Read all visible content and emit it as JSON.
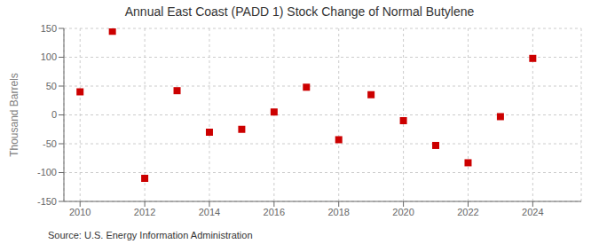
{
  "chart_data": {
    "type": "scatter",
    "title": "Annual East Coast (PADD 1) Stock Change of Normal Butylene",
    "ylabel": "Thousand Barrels",
    "annotation": "Source: U.S. Energy Information Administration",
    "x": [
      2010,
      2011,
      2012,
      2013,
      2014,
      2015,
      2016,
      2017,
      2018,
      2019,
      2020,
      2021,
      2022,
      2023,
      2024
    ],
    "values": [
      40,
      145,
      -110,
      42,
      -30,
      -25,
      5,
      48,
      -43,
      35,
      -10,
      -53,
      -83,
      -3,
      98
    ],
    "color": "#cc0000",
    "marker": "square",
    "xlim": [
      2009.5,
      2025.5
    ],
    "xticks": [
      2010,
      2012,
      2014,
      2016,
      2018,
      2020,
      2022,
      2024
    ],
    "ylim": [
      -150,
      150
    ],
    "yticks": [
      -150,
      -100,
      -50,
      0,
      50,
      100,
      150
    ],
    "grid": true
  }
}
